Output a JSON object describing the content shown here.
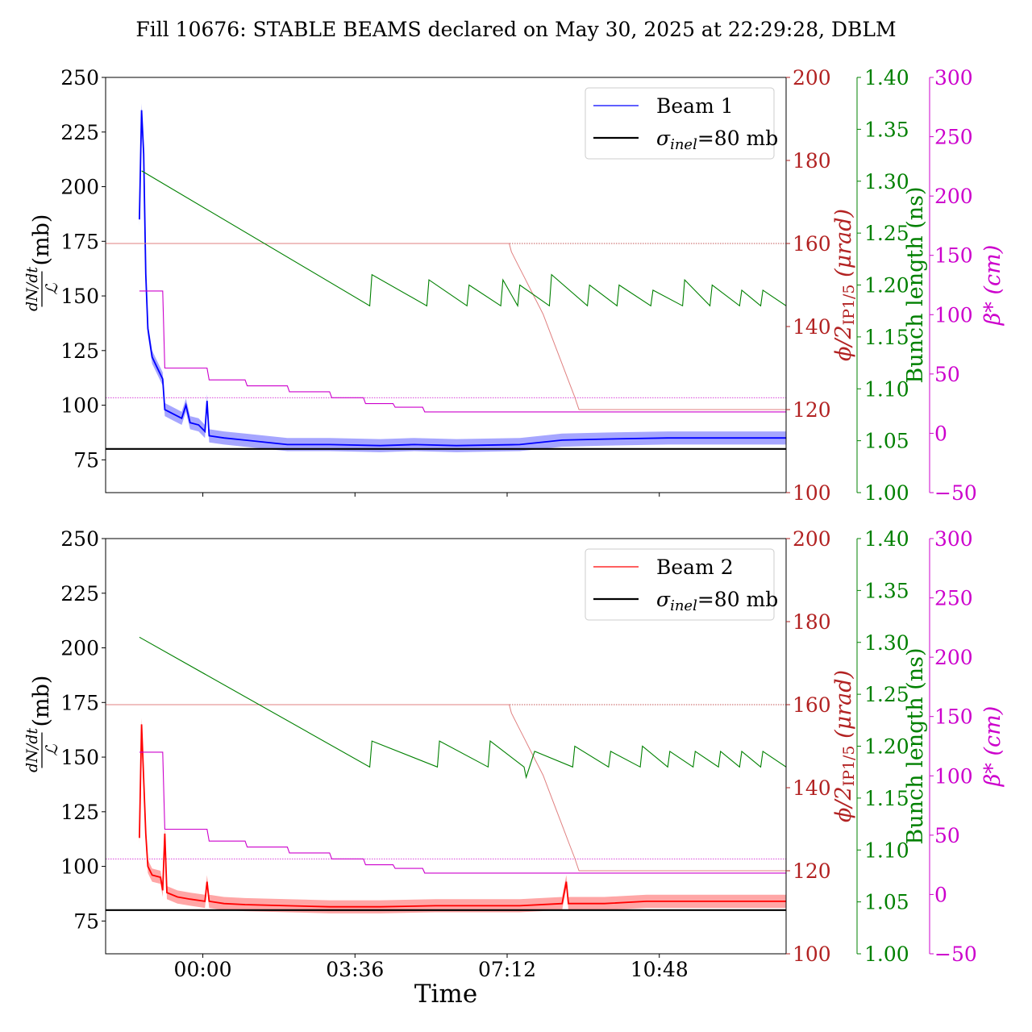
{
  "title": "Fill 10676: STABLE BEAMS declared on May 30, 2025 at 22:29:28, DBLM",
  "xlabel": "Time",
  "x_ticks": [
    "00:00",
    "03:36",
    "07:12",
    "10:48"
  ],
  "axis_labels": {
    "y_left_num": "dN/dt",
    "y_left_den": "ℒ",
    "y_left_unit": "(mb)",
    "crossing": "ϕ/2IP1/5 (μrad)",
    "crossing_main": "ϕ/2",
    "crossing_sub": "IP1/5",
    "crossing_unit": " (μrad)",
    "bunch": "Bunch length (ns)",
    "beta": "β* (cm)"
  },
  "legend_sigma": "σinel=80 mb",
  "legend_sigma_main": "σ",
  "legend_sigma_sub": "inel",
  "legend_sigma_rest": "=80 mb",
  "colors": {
    "beam1": "#0000ff",
    "beam2": "#ff0000",
    "crossing": "#b22222",
    "bunch": "#008000",
    "beta": "#cc00cc",
    "sigma": "#000000"
  },
  "chart_data": [
    {
      "type": "line",
      "panel": "top",
      "beam_label": "Beam 1",
      "x_range_hours": [
        -2.3,
        13.8
      ],
      "axes": {
        "left": {
          "ylim": [
            60,
            250
          ],
          "ticks": [
            75,
            100,
            125,
            150,
            175,
            200,
            225,
            250
          ]
        },
        "crossing": {
          "ylim": [
            100,
            200
          ],
          "ticks": [
            100,
            120,
            140,
            160,
            180,
            200
          ]
        },
        "bunch": {
          "ylim": [
            1.0,
            1.4
          ],
          "ticks": [
            "1.00",
            "1.05",
            "1.10",
            "1.15",
            "1.20",
            "1.25",
            "1.30",
            "1.35",
            "1.40"
          ]
        },
        "beta": {
          "ylim": [
            -50,
            300
          ],
          "ticks": [
            -50,
            0,
            50,
            100,
            150,
            200,
            250,
            300
          ]
        }
      },
      "sigma_inel_mb": 80,
      "xsection": [
        [
          -1.5,
          185
        ],
        [
          -1.45,
          235
        ],
        [
          -1.4,
          215
        ],
        [
          -1.35,
          160
        ],
        [
          -1.3,
          135
        ],
        [
          -1.2,
          122
        ],
        [
          -1.1,
          118
        ],
        [
          -0.95,
          112
        ],
        [
          -0.9,
          98
        ],
        [
          -0.7,
          96
        ],
        [
          -0.5,
          94
        ],
        [
          -0.4,
          100
        ],
        [
          -0.3,
          92
        ],
        [
          -0.1,
          91
        ],
        [
          0.05,
          88
        ],
        [
          0.1,
          102
        ],
        [
          0.15,
          86
        ],
        [
          0.5,
          85
        ],
        [
          1.0,
          84
        ],
        [
          2.0,
          82
        ],
        [
          3.0,
          82
        ],
        [
          4.2,
          81.5
        ],
        [
          5.0,
          82
        ],
        [
          6.0,
          81.5
        ],
        [
          7.5,
          82
        ],
        [
          8.5,
          84
        ],
        [
          9.5,
          84.5
        ],
        [
          11.0,
          85
        ],
        [
          12.5,
          85
        ],
        [
          13.8,
          85
        ]
      ],
      "crossing": [
        [
          -2.3,
          160
        ],
        [
          7.25,
          160
        ],
        [
          7.3,
          158
        ],
        [
          7.45,
          155
        ],
        [
          7.6,
          152
        ],
        [
          7.75,
          149
        ],
        [
          7.9,
          146
        ],
        [
          8.05,
          143
        ],
        [
          8.2,
          139
        ],
        [
          8.35,
          135
        ],
        [
          8.5,
          131
        ],
        [
          8.65,
          127
        ],
        [
          8.8,
          123
        ],
        [
          8.9,
          120
        ],
        [
          13.8,
          120
        ]
      ],
      "bunch": [
        [
          -1.45,
          1.31
        ],
        [
          3.95,
          1.18
        ],
        [
          4.0,
          1.21
        ],
        [
          5.3,
          1.18
        ],
        [
          5.35,
          1.205
        ],
        [
          6.25,
          1.18
        ],
        [
          6.3,
          1.2
        ],
        [
          7.05,
          1.18
        ],
        [
          7.1,
          1.205
        ],
        [
          7.45,
          1.18
        ],
        [
          7.5,
          1.2
        ],
        [
          8.2,
          1.18
        ],
        [
          8.25,
          1.21
        ],
        [
          9.1,
          1.18
        ],
        [
          9.15,
          1.2
        ],
        [
          9.8,
          1.18
        ],
        [
          9.85,
          1.2
        ],
        [
          10.6,
          1.18
        ],
        [
          10.65,
          1.195
        ],
        [
          11.35,
          1.18
        ],
        [
          11.4,
          1.205
        ],
        [
          12.0,
          1.18
        ],
        [
          12.05,
          1.2
        ],
        [
          12.7,
          1.18
        ],
        [
          12.75,
          1.195
        ],
        [
          13.2,
          1.18
        ],
        [
          13.25,
          1.195
        ],
        [
          13.8,
          1.18
        ]
      ],
      "beta": [
        [
          -1.5,
          120
        ],
        [
          -0.95,
          120
        ],
        [
          -0.9,
          55
        ],
        [
          0.1,
          55
        ],
        [
          0.15,
          45
        ],
        [
          1.0,
          45
        ],
        [
          1.05,
          40
        ],
        [
          2.0,
          40
        ],
        [
          2.05,
          35
        ],
        [
          3.0,
          35
        ],
        [
          3.05,
          30
        ],
        [
          3.8,
          30
        ],
        [
          3.85,
          25
        ],
        [
          4.5,
          25
        ],
        [
          4.55,
          22
        ],
        [
          5.2,
          22
        ],
        [
          5.25,
          18
        ],
        [
          13.8,
          18
        ]
      ],
      "beta_ref": 30
    },
    {
      "type": "line",
      "panel": "bottom",
      "beam_label": "Beam 2",
      "x_range_hours": [
        -2.3,
        13.8
      ],
      "axes": {
        "left": {
          "ylim": [
            60,
            250
          ],
          "ticks": [
            75,
            100,
            125,
            150,
            175,
            200,
            225,
            250
          ]
        },
        "crossing": {
          "ylim": [
            100,
            200
          ],
          "ticks": [
            100,
            120,
            140,
            160,
            180,
            200
          ]
        },
        "bunch": {
          "ylim": [
            1.0,
            1.4
          ],
          "ticks": [
            "1.00",
            "1.05",
            "1.10",
            "1.15",
            "1.20",
            "1.25",
            "1.30",
            "1.35",
            "1.40"
          ]
        },
        "beta": {
          "ylim": [
            -50,
            300
          ],
          "ticks": [
            -50,
            0,
            50,
            100,
            150,
            200,
            250,
            300
          ]
        }
      },
      "sigma_inel_mb": 80,
      "xsection": [
        [
          -1.5,
          113
        ],
        [
          -1.45,
          165
        ],
        [
          -1.4,
          140
        ],
        [
          -1.35,
          115
        ],
        [
          -1.3,
          100
        ],
        [
          -1.2,
          96
        ],
        [
          -1.0,
          95
        ],
        [
          -0.95,
          89
        ],
        [
          -0.9,
          115
        ],
        [
          -0.85,
          88
        ],
        [
          -0.6,
          86
        ],
        [
          -0.3,
          85
        ],
        [
          0.05,
          84
        ],
        [
          0.1,
          93
        ],
        [
          0.15,
          84
        ],
        [
          0.5,
          83
        ],
        [
          1.0,
          82.5
        ],
        [
          2.0,
          82
        ],
        [
          3.0,
          81.5
        ],
        [
          4.2,
          81.5
        ],
        [
          5.5,
          82
        ],
        [
          6.5,
          82
        ],
        [
          7.5,
          82
        ],
        [
          8.5,
          83
        ],
        [
          8.6,
          93
        ],
        [
          8.65,
          83
        ],
        [
          9.5,
          83
        ],
        [
          10.5,
          84
        ],
        [
          12.0,
          84
        ],
        [
          13.8,
          84
        ]
      ],
      "crossing": [
        [
          -2.3,
          160
        ],
        [
          7.25,
          160
        ],
        [
          7.3,
          158
        ],
        [
          7.45,
          155
        ],
        [
          7.6,
          152
        ],
        [
          7.75,
          149
        ],
        [
          7.9,
          146
        ],
        [
          8.05,
          143
        ],
        [
          8.2,
          139
        ],
        [
          8.35,
          135
        ],
        [
          8.5,
          131
        ],
        [
          8.65,
          127
        ],
        [
          8.8,
          123
        ],
        [
          8.9,
          120
        ],
        [
          13.8,
          120
        ]
      ],
      "bunch": [
        [
          -1.5,
          1.305
        ],
        [
          3.95,
          1.18
        ],
        [
          4.0,
          1.205
        ],
        [
          5.55,
          1.18
        ],
        [
          5.6,
          1.205
        ],
        [
          6.75,
          1.18
        ],
        [
          6.8,
          1.205
        ],
        [
          7.6,
          1.18
        ],
        [
          7.65,
          1.17
        ],
        [
          7.85,
          1.195
        ],
        [
          8.75,
          1.18
        ],
        [
          8.8,
          1.2
        ],
        [
          9.6,
          1.18
        ],
        [
          9.65,
          1.195
        ],
        [
          10.35,
          1.18
        ],
        [
          10.4,
          1.2
        ],
        [
          11.0,
          1.18
        ],
        [
          11.05,
          1.195
        ],
        [
          11.6,
          1.18
        ],
        [
          11.65,
          1.195
        ],
        [
          12.2,
          1.18
        ],
        [
          12.25,
          1.195
        ],
        [
          12.7,
          1.18
        ],
        [
          12.75,
          1.195
        ],
        [
          13.2,
          1.18
        ],
        [
          13.25,
          1.195
        ],
        [
          13.8,
          1.18
        ]
      ],
      "beta": [
        [
          -1.5,
          120
        ],
        [
          -0.95,
          120
        ],
        [
          -0.9,
          55
        ],
        [
          0.1,
          55
        ],
        [
          0.15,
          45
        ],
        [
          1.0,
          45
        ],
        [
          1.05,
          40
        ],
        [
          2.0,
          40
        ],
        [
          2.05,
          35
        ],
        [
          3.0,
          35
        ],
        [
          3.05,
          30
        ],
        [
          3.8,
          30
        ],
        [
          3.85,
          25
        ],
        [
          4.5,
          25
        ],
        [
          4.55,
          22
        ],
        [
          5.2,
          22
        ],
        [
          5.25,
          18
        ],
        [
          13.8,
          18
        ]
      ],
      "beta_ref": 30
    }
  ]
}
